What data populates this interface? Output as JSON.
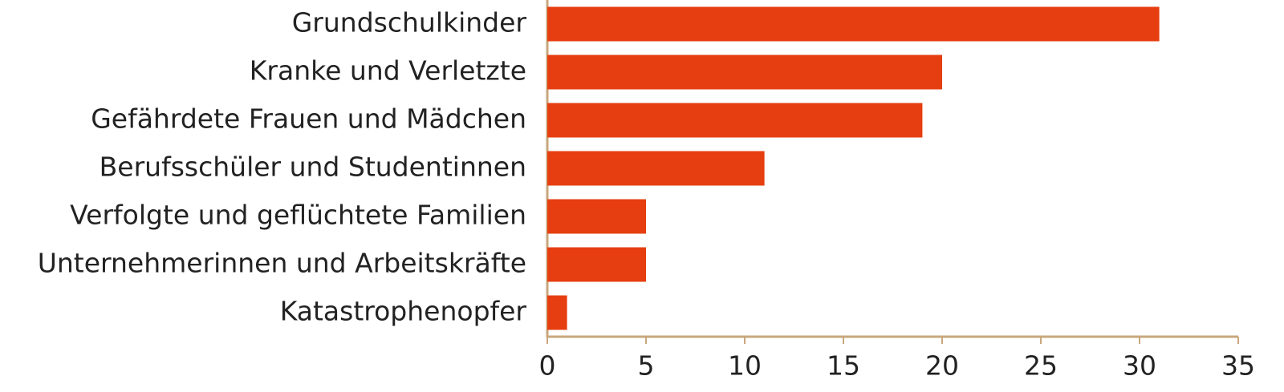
{
  "chart_data": {
    "type": "bar",
    "orientation": "horizontal",
    "categories": [
      "Grundschulkinder",
      "Kranke und Verletzte",
      "Gefährdete Frauen und Mädchen",
      "Berufsschüler und Studentinnen",
      "Verfolgte und geflüchtete Familien",
      "Unternehmerinnen und Arbeitskräfte",
      "Katastrophenopfer"
    ],
    "values": [
      31,
      20,
      19,
      11,
      5,
      5,
      1
    ],
    "color": "#e63e10",
    "axis_color": "#c8a77c",
    "xlim": [
      0,
      35
    ],
    "xticks": [
      0,
      5,
      10,
      15,
      20,
      25,
      30,
      35
    ],
    "grid": false
  }
}
